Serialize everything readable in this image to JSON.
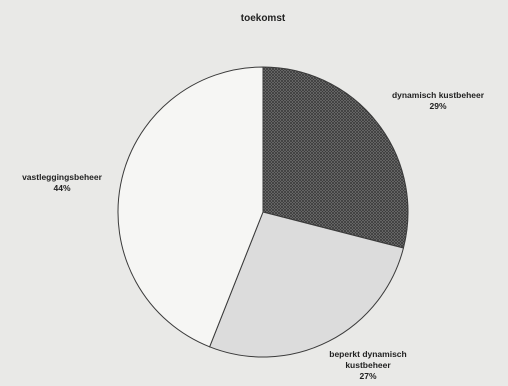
{
  "chart_data": {
    "type": "pie",
    "title": "toekomst",
    "slices": [
      {
        "label_lines": [
          "dynamisch kustbeheer"
        ],
        "value": 29,
        "value_label": "29%",
        "fill": "hatched",
        "color": "#6e6e6e"
      },
      {
        "label_lines": [
          "beperkt dynamisch",
          "kustbeheer"
        ],
        "value": 27,
        "value_label": "27%",
        "fill": "light-grey",
        "color": "#dcdcdc"
      },
      {
        "label_lines": [
          "vastleggingsbeheer"
        ],
        "value": 44,
        "value_label": "44%",
        "fill": "white",
        "color": "#f6f6f4"
      }
    ],
    "start_angle": "12 o'clock",
    "direction": "clockwise",
    "legend": "none"
  }
}
